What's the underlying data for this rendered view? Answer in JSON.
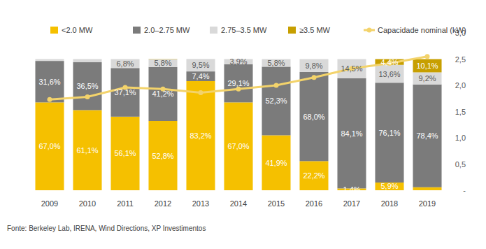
{
  "chart_data": {
    "type": "bar",
    "stacked": true,
    "data_labels": true,
    "grid": false,
    "legend": "top",
    "categories": [
      "2009",
      "2010",
      "2011",
      "2012",
      "2013",
      "2014",
      "2015",
      "2016",
      "2017",
      "2018",
      "2019"
    ],
    "ylim": [
      0,
      120
    ],
    "yticks": [],
    "y2lim": [
      0,
      3.0
    ],
    "y2ticks": [
      {
        "value": 0,
        "label": "-"
      },
      {
        "value": 0.5,
        "label": "0,5"
      },
      {
        "value": 1.0,
        "label": "1,0"
      },
      {
        "value": 1.5,
        "label": "1,5"
      },
      {
        "value": 2.0,
        "label": "2,0"
      },
      {
        "value": 2.5,
        "label": "2,5"
      },
      {
        "value": 3.0,
        "label": "3,0"
      }
    ],
    "series": [
      {
        "name": "<2.0 MW",
        "color": "#f5c000",
        "values": [
          67.0,
          61.1,
          56.1,
          52.8,
          83.2,
          67.0,
          41.9,
          22.2,
          1.4,
          5.9,
          2.3
        ],
        "value_labels": [
          "67,0%",
          "61,1%",
          "56,1%",
          "52,8%",
          "83,2%",
          "67,0%",
          "41,9%",
          "22,2%",
          "1,4%",
          "5,9%",
          null
        ]
      },
      {
        "name": "2.0–2.75 MW",
        "color": "#7b7b7b",
        "values": [
          31.6,
          36.5,
          37.1,
          41.2,
          7.4,
          29.1,
          52.3,
          68.0,
          84.1,
          76.1,
          78.4
        ],
        "value_labels": [
          "31,6%",
          "36,5%",
          "37,1%",
          "41,2%",
          "7,4%",
          "29,1%",
          "52,3%",
          "68,0%",
          "84,1%",
          "76,1%",
          "78,4%"
        ]
      },
      {
        "name": "2.75–3.5 MW",
        "color": "#d9d9d9",
        "values": [
          1.4,
          2.4,
          6.8,
          5.8,
          9.5,
          3.9,
          5.8,
          9.8,
          14.5,
          13.6,
          9.2
        ],
        "value_labels": [
          null,
          null,
          "6,8%",
          "5,8%",
          "9,5%",
          "3,9%",
          "5,8%",
          "9,8%",
          "14,5%",
          "13,6%",
          "9,2%"
        ]
      },
      {
        "name": "≥3.5 MW",
        "color": "#c79f00",
        "values": [
          0,
          0,
          0,
          0.2,
          0,
          0,
          0,
          0,
          0,
          4.4,
          10.1
        ],
        "value_labels": [
          null,
          null,
          null,
          null,
          null,
          null,
          null,
          null,
          null,
          "4,4%",
          "10,1%"
        ]
      },
      {
        "name": "Capacidade nominal (kW)",
        "type": "line",
        "axis": "y2",
        "color": "#f3d36b",
        "marker": "circle",
        "values": [
          1.73,
          1.78,
          1.96,
          1.93,
          1.86,
          1.93,
          2.0,
          2.15,
          2.32,
          2.42,
          2.55
        ]
      }
    ],
    "source": "Fonte: Berkeley Lab, IRENA, Wind Directions, XP Investimentos"
  }
}
